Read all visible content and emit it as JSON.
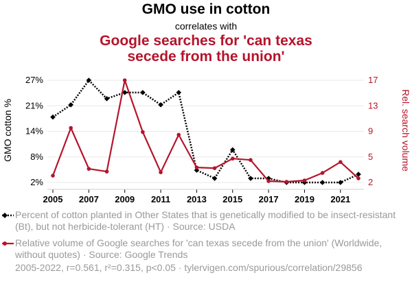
{
  "chart_data": {
    "type": "line",
    "title": "GMO use in cotton",
    "connector": "correlates with",
    "subtitle": "Google searches for 'can texas secede from the union'",
    "x": [
      2005,
      2006,
      2007,
      2008,
      2009,
      2010,
      2011,
      2012,
      2013,
      2014,
      2015,
      2016,
      2017,
      2018,
      2019,
      2020,
      2021,
      2022
    ],
    "x_ticks": [
      "2005",
      "2007",
      "2009",
      "2011",
      "2013",
      "2015",
      "2017",
      "2019",
      "2021"
    ],
    "y_left": {
      "label": "GMO cotton %",
      "ticks": [
        "2%",
        "8%",
        "14%",
        "21%",
        "27%"
      ],
      "range": [
        2,
        27
      ],
      "color": "#000000"
    },
    "y_right": {
      "label": "Rel. search volume",
      "ticks": [
        "2",
        "5",
        "9",
        "13",
        "17"
      ],
      "range": [
        2,
        17
      ],
      "color": "#b5142b"
    },
    "series": [
      {
        "axis": "left",
        "color": "#000000",
        "style": "dotted",
        "marker": "diamond",
        "values": [
          18,
          21,
          27,
          22.5,
          24,
          24,
          21,
          24,
          5,
          3,
          10,
          3,
          3,
          2,
          2,
          2,
          2,
          4
        ],
        "legend": "Percent of cotton planted in Other States that is genetically modified to be insect-resistant (Bt), but not herbicide-tolerant (HT) · Source: USDA"
      },
      {
        "axis": "right",
        "color": "#b5142b",
        "style": "solid",
        "marker": "circle",
        "values": [
          3,
          10,
          4,
          3.6,
          17,
          9.4,
          3.5,
          9,
          4.2,
          4.1,
          5.5,
          5.3,
          2.2,
          2.1,
          2.3,
          3.4,
          5,
          2.6
        ],
        "legend": "Relative volume of Google searches for 'can texas secede from the union' (Worldwide, without quotes) · Source: Google Trends"
      }
    ],
    "grid": true
  },
  "footer": "2005-2022, r=0.561, r²=0.315, p<0.05 · tylervigen.com/spurious/correlation/29856"
}
